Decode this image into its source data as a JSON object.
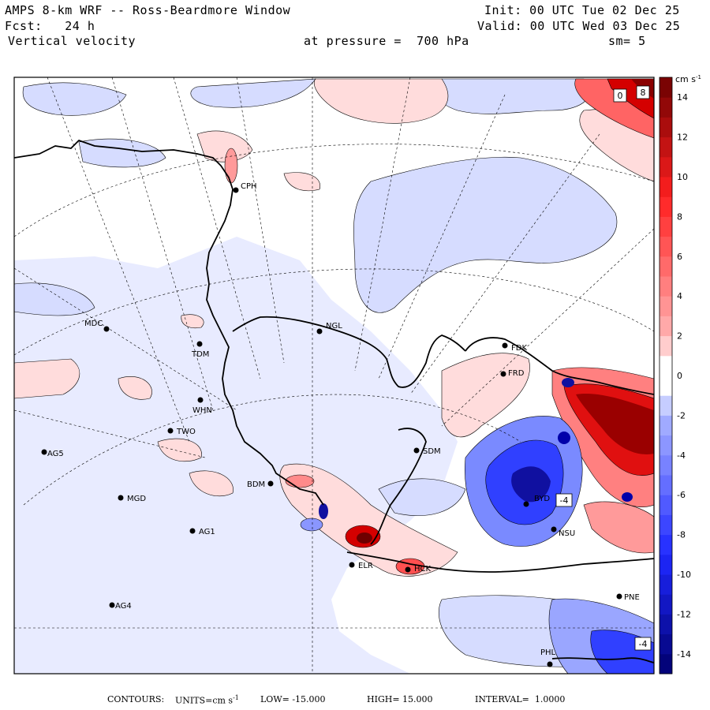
{
  "header": {
    "model": "AMPS 8-km WRF -- Ross-Beardmore Window",
    "forecast": "Fcst:   24 h",
    "field": "Vertical velocity",
    "init": "Init: 00 UTC Tue 02 Dec 25",
    "valid": "Valid: 00 UTC Wed 03 Dec 25",
    "pressure": "at pressure =  700 hPa",
    "smoothing": "sm= 5"
  },
  "colorbar": {
    "units": "cm s",
    "units_exp": "-1",
    "ticks": [
      14,
      12,
      10,
      8,
      6,
      4,
      2,
      0,
      -2,
      -4,
      -6,
      -8,
      -10,
      -12,
      -14
    ],
    "min": -15,
    "max": 15,
    "colors": {
      "neg_strong": "#00006e",
      "neg_mid": "#1e28ff",
      "neg_light": "#aab4ff",
      "zero": "#ffffff",
      "pos_light": "#ffb4b4",
      "pos_mid": "#ff2020",
      "pos_strong": "#6e0000"
    }
  },
  "stations": [
    {
      "code": "CPH"
    },
    {
      "code": "NGL"
    },
    {
      "code": "MDC"
    },
    {
      "code": "TDM"
    },
    {
      "code": "FDK"
    },
    {
      "code": "FRD"
    },
    {
      "code": "WHN"
    },
    {
      "code": "TWO"
    },
    {
      "code": "AG5"
    },
    {
      "code": "SDM"
    },
    {
      "code": "BDM"
    },
    {
      "code": "MGD"
    },
    {
      "code": "BYD"
    },
    {
      "code": "NSU"
    },
    {
      "code": "AG1"
    },
    {
      "code": "ELR"
    },
    {
      "code": "HCK"
    },
    {
      "code": "AG4"
    },
    {
      "code": "PHL"
    },
    {
      "code": "PNE"
    }
  ],
  "map_labels": {
    "contour_box_top_left": "0",
    "contour_box_top_right": "8",
    "contour_box_mid": "-4",
    "contour_box_bottom": "-4"
  },
  "footer": {
    "contours": "CONTOURS:",
    "units_label": "UNITS=cm s",
    "units_exp": "-1",
    "low": "LOW= -15.000",
    "high": "HIGH= 15.000",
    "interval": "INTERVAL=  1.0000"
  }
}
